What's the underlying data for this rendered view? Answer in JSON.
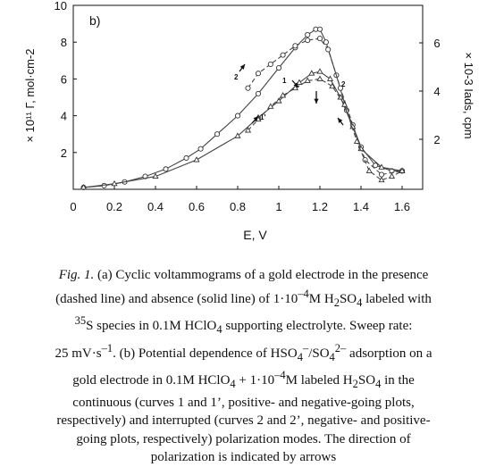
{
  "chart_data": {
    "type": "line",
    "panel_label": "b)",
    "xlabel": "E, V",
    "ylabel_left": "× 10¹¹ Γ, mol·cm-2",
    "ylabel_right": "× 10-3 Iads, cpm",
    "xlim": [
      0,
      1.7
    ],
    "ylim_left": [
      0,
      10
    ],
    "x_ticks": [
      "0",
      "0.2",
      "0.4",
      "0.6",
      "0.8",
      "1",
      "1.2",
      "1.4",
      "1.6"
    ],
    "y_ticks_left": [
      "2",
      "4",
      "6",
      "8",
      "10"
    ],
    "y_ticks_right": [
      "2",
      "4",
      "6"
    ],
    "curve_labels": [
      "2",
      "1",
      "2",
      "1'"
    ],
    "series": [
      {
        "marker": "circle",
        "dash": false,
        "x": [
          0.05,
          0.15,
          0.25,
          0.35,
          0.45,
          0.55,
          0.62,
          0.7,
          0.8,
          0.9,
          1.0,
          1.08,
          1.14,
          1.18,
          1.2,
          1.23,
          1.28,
          1.33,
          1.4,
          1.47,
          1.55,
          1.6
        ],
        "y": [
          0.1,
          0.2,
          0.4,
          0.7,
          1.1,
          1.7,
          2.2,
          3.0,
          4.0,
          5.2,
          6.6,
          7.7,
          8.4,
          8.7,
          8.7,
          8.0,
          6.2,
          4.3,
          2.3,
          1.3,
          1.0,
          1.0
        ]
      },
      {
        "marker": "circle",
        "dash": true,
        "x": [
          0.85,
          0.9,
          0.96,
          1.02,
          1.08,
          1.14,
          1.2,
          1.24,
          1.3,
          1.36,
          1.42,
          1.5,
          1.6
        ],
        "y": [
          5.5,
          6.3,
          6.8,
          7.3,
          7.8,
          8.1,
          8.2,
          7.6,
          5.5,
          3.5,
          1.6,
          0.8,
          1.0
        ]
      },
      {
        "marker": "triangle",
        "dash": false,
        "x": [
          0.05,
          0.2,
          0.4,
          0.6,
          0.8,
          0.9,
          1.0,
          1.1,
          1.16,
          1.2,
          1.25,
          1.3,
          1.36,
          1.4,
          1.5,
          1.6
        ],
        "y": [
          0.1,
          0.3,
          0.7,
          1.6,
          2.9,
          3.9,
          4.8,
          5.8,
          6.3,
          6.4,
          6.0,
          5.0,
          3.4,
          2.2,
          1.2,
          1.0
        ]
      },
      {
        "marker": "triangle",
        "dash": true,
        "x": [
          0.85,
          0.9,
          0.96,
          1.02,
          1.08,
          1.14,
          1.2,
          1.26,
          1.32,
          1.38,
          1.44,
          1.5,
          1.55,
          1.6
        ],
        "y": [
          3.2,
          3.8,
          4.5,
          5.1,
          5.5,
          5.9,
          6.0,
          5.6,
          4.6,
          2.6,
          1.0,
          0.5,
          0.7,
          1.0
        ]
      }
    ]
  },
  "caption": {
    "line1": {
      "label": "Fig. 1.",
      "text": " (a) Cyclic voltammograms of a gold electrode in the presence"
    },
    "line2": {
      "a": "(dashed line) and absence (solid line) of 1·10",
      "b": "–4",
      "c": "M H",
      "d": "2",
      "e": "SO",
      "f": "4",
      "g": " labeled with"
    },
    "line3": {
      "a": "35",
      "b": "S species in 0.1M HClO",
      "c": "4",
      "d": " supporting electrolyte. Sweep rate:"
    },
    "line4": {
      "a": "25 mV·s",
      "b": "–1",
      "c": ". (b) Potential dependence of HSO",
      "d": "4",
      "e": "–",
      "f": "/SO",
      "g": "4",
      "h": "2–",
      "i": " adsorption on a"
    },
    "line5": {
      "a": "gold electrode in 0.1M HClO",
      "b": "4",
      "c": " + 1·10",
      "d": "–4",
      "e": "M labeled H",
      "f": "2",
      "g": "SO",
      "h": "4",
      "i": " in the"
    },
    "line6": "continuous (curves 1 and 1’, positive- and negative-going plots,",
    "line7": "respectively) and interrupted (curves 2 and 2’, negative- and positive-",
    "line8": "going plots, respectively) polarization modes. The direction of",
    "line9": "polarization is indicated by arrows"
  }
}
